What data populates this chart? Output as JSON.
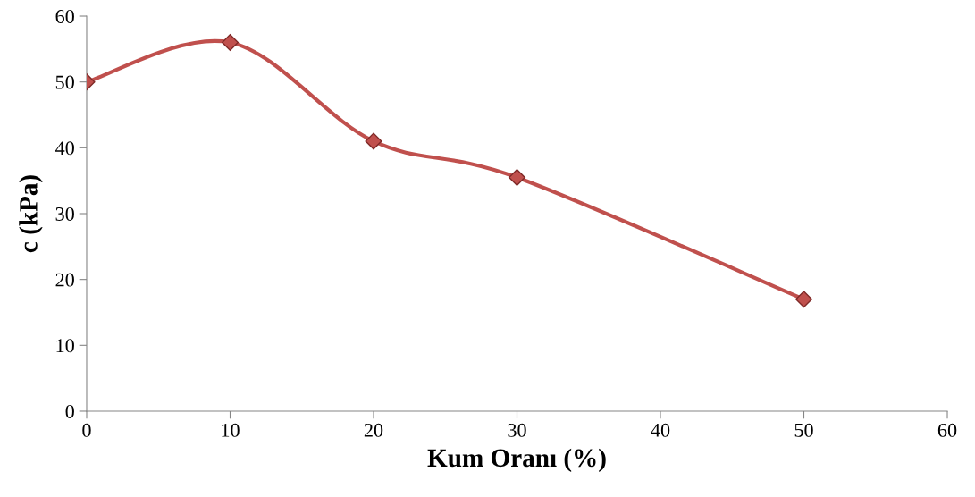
{
  "chart_data": {
    "type": "line",
    "xlabel": "Kum Oranı (%)",
    "ylabel": "c (kPa)",
    "x": [
      0,
      10,
      20,
      30,
      50
    ],
    "series": [
      {
        "color": "#c0504d",
        "values": [
          50,
          56,
          41,
          35.5,
          17
        ]
      }
    ],
    "xlim": [
      0,
      60
    ],
    "xticks": [
      0,
      10,
      20,
      30,
      40,
      50,
      60
    ],
    "ylim": [
      0,
      60
    ],
    "yticks": [
      0,
      10,
      20,
      30,
      40,
      50,
      60
    ],
    "grid": false,
    "legend": false,
    "marker": "diamond",
    "line_style": "solid"
  }
}
